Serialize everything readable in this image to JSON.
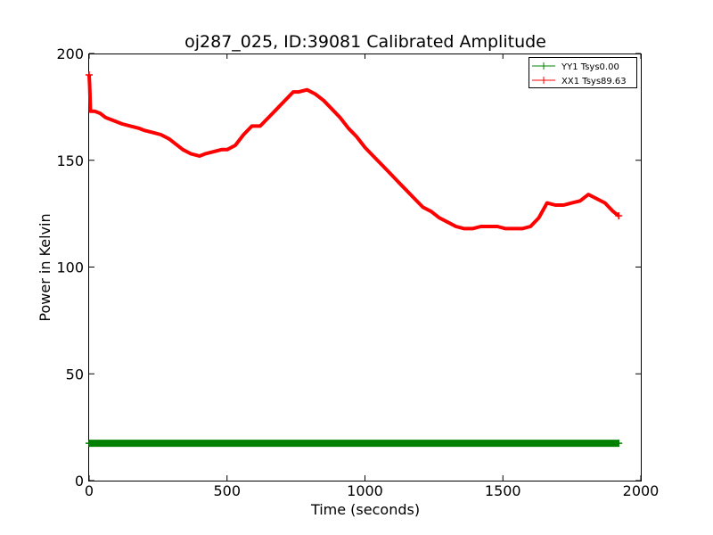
{
  "chart_data": {
    "type": "line",
    "title": "oj287_025, ID:39081 Calibrated Amplitude",
    "xlabel": "Time (seconds)",
    "ylabel": "Power in Kelvin",
    "xlim": [
      0,
      2000
    ],
    "ylim": [
      0,
      200
    ],
    "xticks": [
      0,
      500,
      1000,
      1500,
      2000
    ],
    "yticks": [
      0,
      50,
      100,
      150,
      200
    ],
    "grid": false,
    "legend_position": "top-right",
    "series": [
      {
        "name": "YY1 Tsys0.00",
        "color": "#008000",
        "x": [
          0,
          1920
        ],
        "y": [
          17.5,
          17.5
        ]
      },
      {
        "name": "XX1 Tsys89.63",
        "color": "#ff0000",
        "x": [
          0,
          2,
          5,
          20,
          40,
          60,
          80,
          100,
          120,
          150,
          180,
          200,
          230,
          260,
          290,
          310,
          340,
          370,
          400,
          420,
          450,
          480,
          500,
          530,
          560,
          590,
          620,
          650,
          680,
          710,
          740,
          760,
          790,
          820,
          850,
          880,
          910,
          940,
          970,
          1000,
          1030,
          1060,
          1090,
          1120,
          1150,
          1180,
          1210,
          1240,
          1270,
          1300,
          1330,
          1360,
          1390,
          1420,
          1450,
          1480,
          1510,
          1540,
          1570,
          1600,
          1630,
          1660,
          1690,
          1720,
          1750,
          1780,
          1810,
          1840,
          1870,
          1900,
          1920
        ],
        "y": [
          190,
          185,
          173,
          173,
          172,
          170,
          169,
          168,
          167,
          166,
          165,
          164,
          163,
          162,
          160,
          158,
          155,
          153,
          152,
          153,
          154,
          155,
          155,
          157,
          162,
          166,
          166,
          170,
          174,
          178,
          182,
          182,
          183,
          181,
          178,
          174,
          170,
          165,
          161,
          156,
          152,
          148,
          144,
          140,
          136,
          132,
          128,
          126,
          123,
          121,
          119,
          118,
          118,
          119,
          119,
          119,
          118,
          118,
          118,
          119,
          123,
          130,
          129,
          129,
          130,
          131,
          134,
          132,
          130,
          126,
          124
        ]
      }
    ]
  }
}
